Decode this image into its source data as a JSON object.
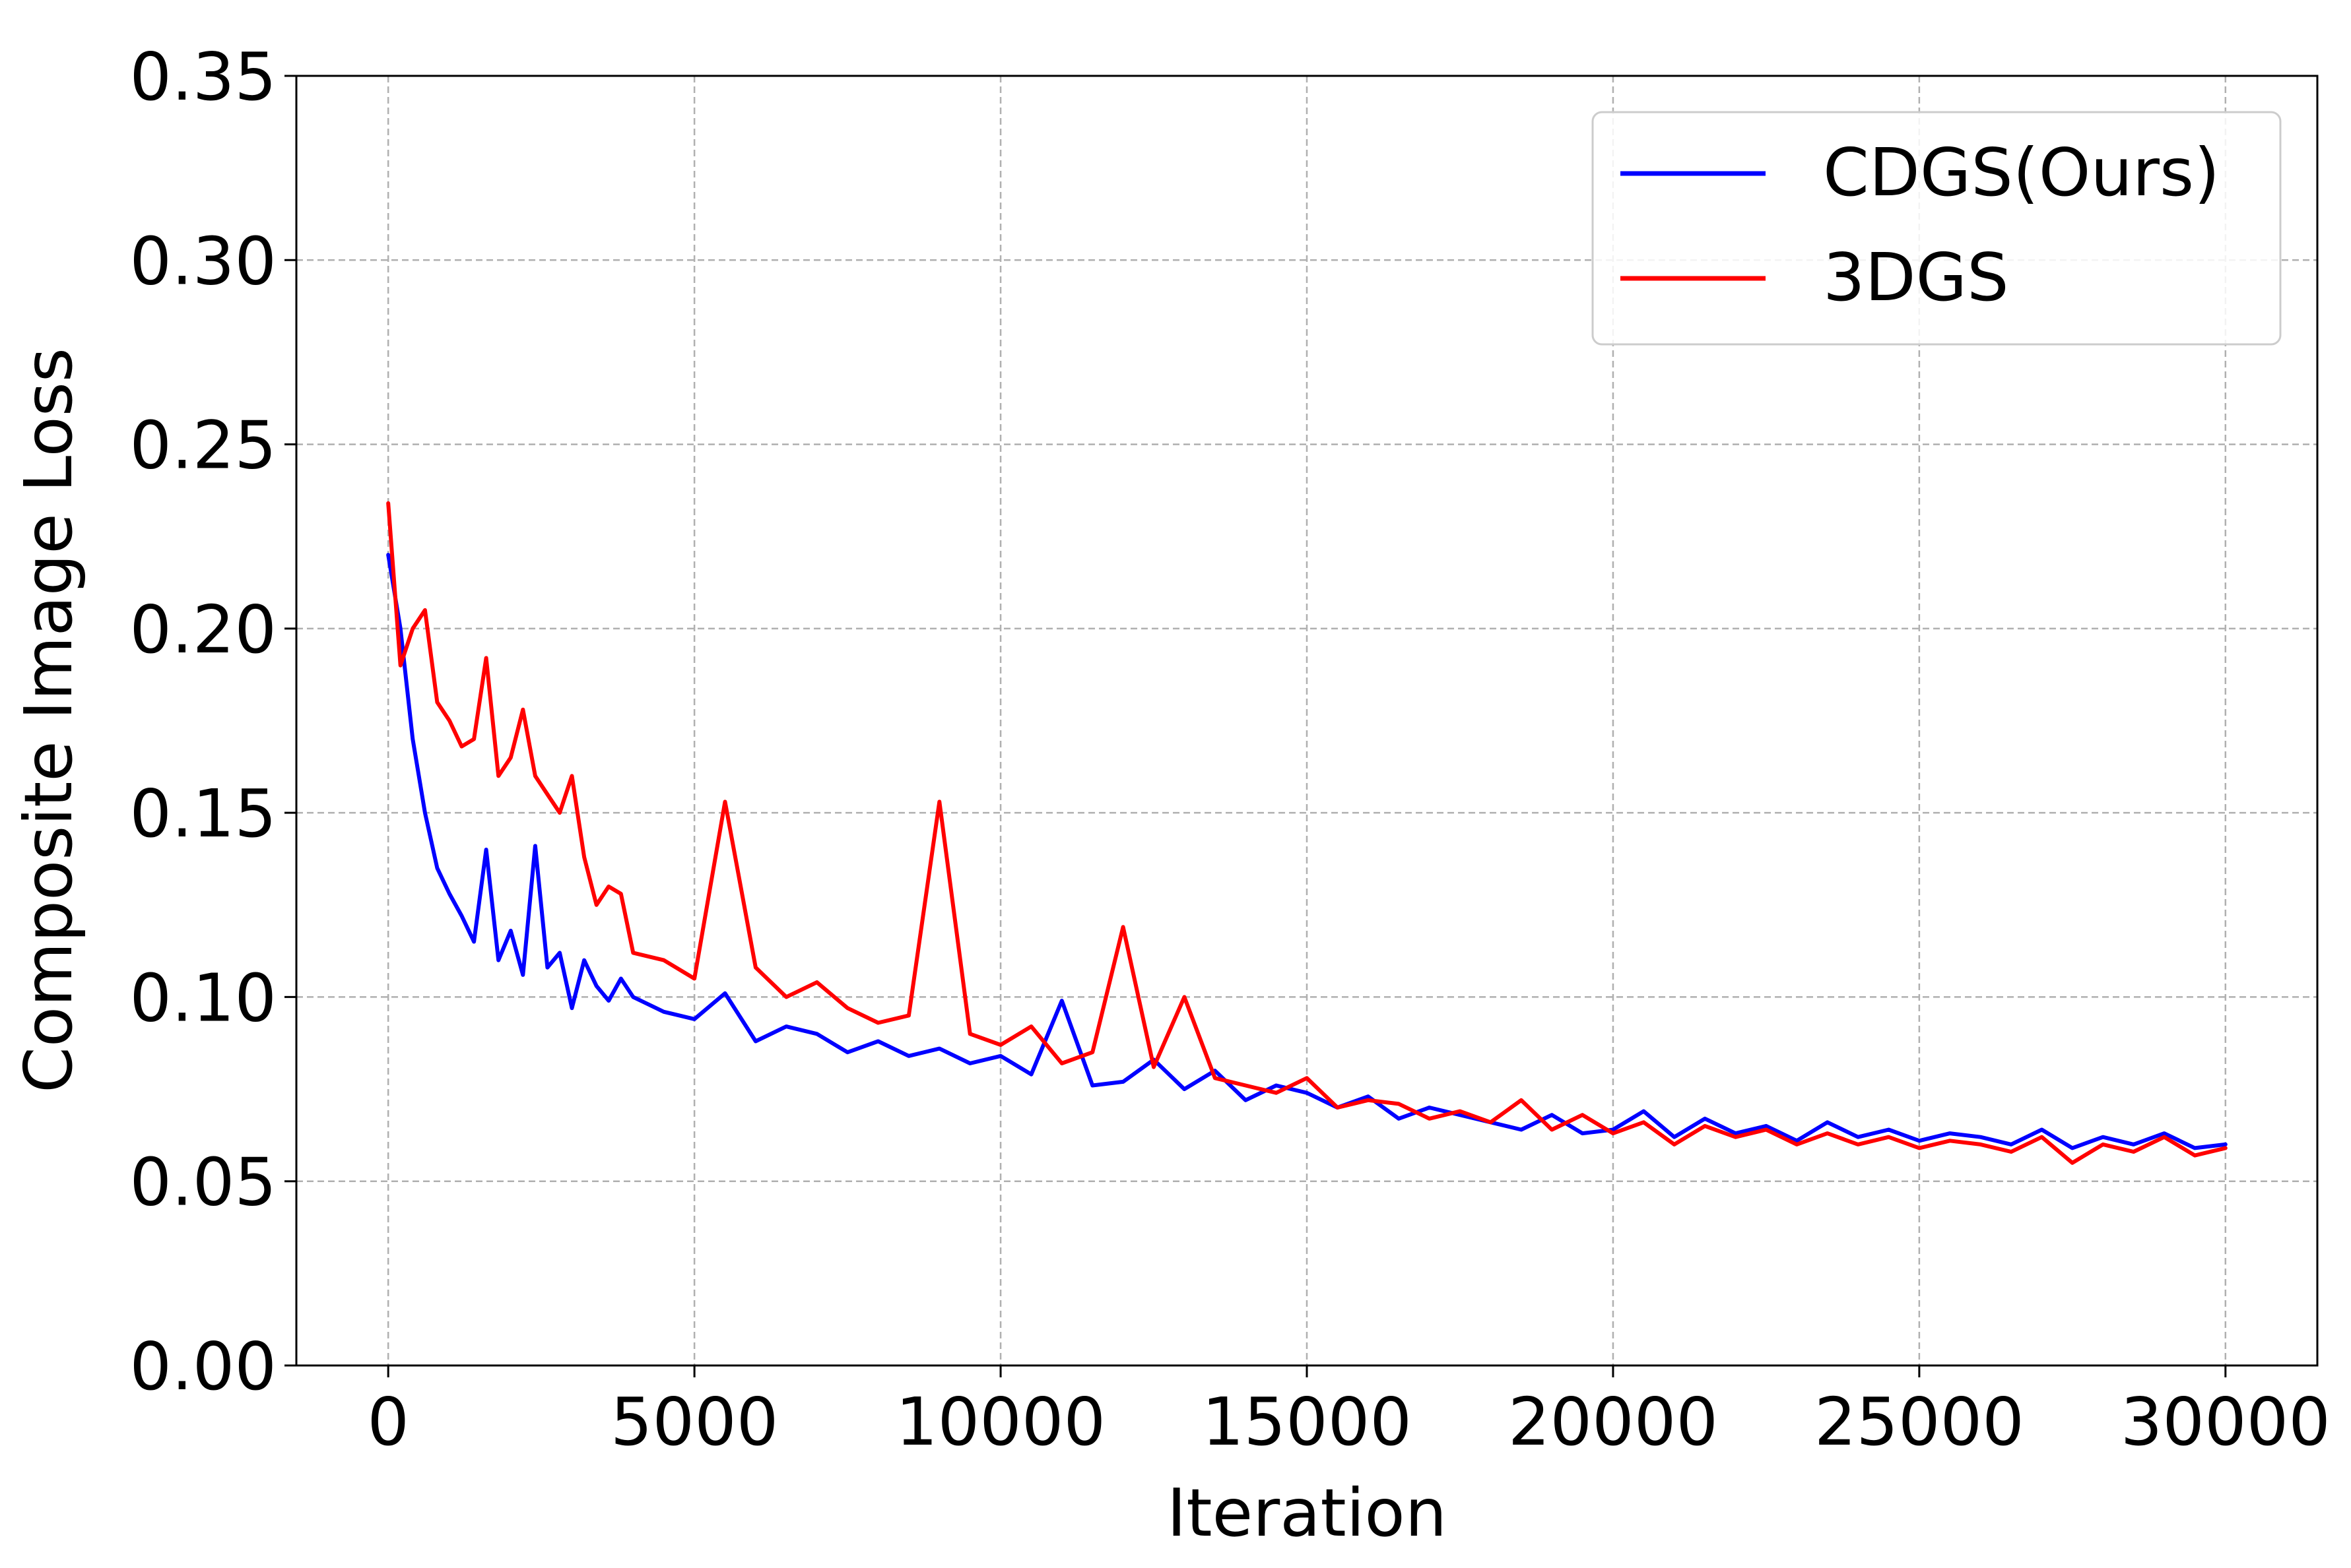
{
  "chart_data": {
    "type": "line",
    "title": "",
    "xlabel": "Iteration",
    "ylabel": "Composite Image Loss",
    "xlim": [
      -1500,
      31500
    ],
    "ylim": [
      0,
      0.35
    ],
    "xticks": [
      0,
      5000,
      10000,
      15000,
      20000,
      25000,
      30000
    ],
    "xtick_labels": [
      "0",
      "5000",
      "10000",
      "15000",
      "20000",
      "25000",
      "30000"
    ],
    "yticks": [
      0.0,
      0.05,
      0.1,
      0.15,
      0.2,
      0.25,
      0.3,
      0.35
    ],
    "ytick_labels": [
      "0.00",
      "0.05",
      "0.10",
      "0.15",
      "0.20",
      "0.25",
      "0.30",
      "0.35"
    ],
    "grid": true,
    "legend_position": "top-right",
    "series": [
      {
        "name": "CDGS(Ours)",
        "color": "#0000ff",
        "x": [
          0,
          200,
          400,
          600,
          800,
          1000,
          1200,
          1400,
          1600,
          1800,
          2000,
          2200,
          2400,
          2600,
          2800,
          3000,
          3200,
          3400,
          3600,
          3800,
          4000,
          4500,
          5000,
          5500,
          6000,
          6500,
          7000,
          7500,
          8000,
          8500,
          9000,
          9500,
          10000,
          10500,
          11000,
          11500,
          12000,
          12500,
          13000,
          13500,
          14000,
          14500,
          15000,
          15500,
          16000,
          16500,
          17000,
          17500,
          18000,
          18500,
          19000,
          19500,
          20000,
          20500,
          21000,
          21500,
          22000,
          22500,
          23000,
          23500,
          24000,
          24500,
          25000,
          25500,
          26000,
          26500,
          27000,
          27500,
          28000,
          28500,
          29000,
          29500,
          30000
        ],
        "y": [
          0.22,
          0.2,
          0.17,
          0.15,
          0.135,
          0.128,
          0.122,
          0.115,
          0.14,
          0.11,
          0.118,
          0.106,
          0.141,
          0.108,
          0.112,
          0.097,
          0.11,
          0.103,
          0.099,
          0.105,
          0.1,
          0.096,
          0.094,
          0.101,
          0.088,
          0.092,
          0.09,
          0.085,
          0.088,
          0.084,
          0.086,
          0.082,
          0.084,
          0.079,
          0.099,
          0.076,
          0.077,
          0.083,
          0.075,
          0.08,
          0.072,
          0.076,
          0.074,
          0.07,
          0.073,
          0.067,
          0.07,
          0.068,
          0.066,
          0.064,
          0.068,
          0.063,
          0.064,
          0.069,
          0.062,
          0.067,
          0.063,
          0.065,
          0.061,
          0.066,
          0.062,
          0.064,
          0.061,
          0.063,
          0.062,
          0.06,
          0.064,
          0.059,
          0.062,
          0.06,
          0.063,
          0.059,
          0.06
        ]
      },
      {
        "name": "3DGS",
        "color": "#ff0000",
        "x": [
          0,
          200,
          400,
          600,
          800,
          1000,
          1200,
          1400,
          1600,
          1800,
          2000,
          2200,
          2400,
          2600,
          2800,
          3000,
          3200,
          3400,
          3600,
          3800,
          4000,
          4500,
          5000,
          5500,
          6000,
          6500,
          7000,
          7500,
          8000,
          8500,
          9000,
          9500,
          10000,
          10500,
          11000,
          11500,
          12000,
          12500,
          13000,
          13500,
          14000,
          14500,
          15000,
          15500,
          16000,
          16500,
          17000,
          17500,
          18000,
          18500,
          19000,
          19500,
          20000,
          20500,
          21000,
          21500,
          22000,
          22500,
          23000,
          23500,
          24000,
          24500,
          25000,
          25500,
          26000,
          26500,
          27000,
          27500,
          28000,
          28500,
          29000,
          29500,
          30000
        ],
        "y": [
          0.234,
          0.19,
          0.2,
          0.205,
          0.18,
          0.175,
          0.168,
          0.17,
          0.192,
          0.16,
          0.165,
          0.178,
          0.16,
          0.155,
          0.15,
          0.16,
          0.138,
          0.125,
          0.13,
          0.128,
          0.112,
          0.11,
          0.105,
          0.153,
          0.108,
          0.1,
          0.104,
          0.097,
          0.093,
          0.095,
          0.153,
          0.09,
          0.087,
          0.092,
          0.082,
          0.085,
          0.119,
          0.081,
          0.1,
          0.078,
          0.076,
          0.074,
          0.078,
          0.07,
          0.072,
          0.071,
          0.067,
          0.069,
          0.066,
          0.072,
          0.064,
          0.068,
          0.063,
          0.066,
          0.06,
          0.065,
          0.062,
          0.064,
          0.06,
          0.063,
          0.06,
          0.062,
          0.059,
          0.061,
          0.06,
          0.058,
          0.062,
          0.055,
          0.06,
          0.058,
          0.062,
          0.057,
          0.059
        ]
      }
    ]
  }
}
